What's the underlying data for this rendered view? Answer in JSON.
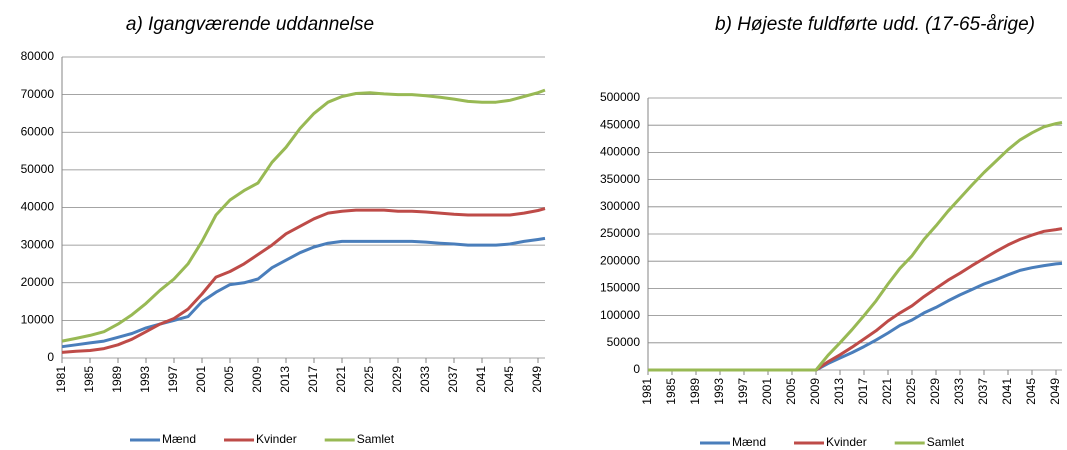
{
  "chart_data": [
    {
      "type": "line",
      "title": "a) Igangværende  uddannelse",
      "x": [
        1981,
        1983,
        1985,
        1987,
        1989,
        1991,
        1993,
        1995,
        1997,
        1999,
        2001,
        2003,
        2005,
        2007,
        2009,
        2011,
        2013,
        2015,
        2017,
        2019,
        2021,
        2023,
        2025,
        2027,
        2029,
        2031,
        2033,
        2035,
        2037,
        2039,
        2041,
        2043,
        2045,
        2047,
        2049,
        2050
      ],
      "xlim": [
        1981,
        2050
      ],
      "xticks": [
        1981,
        1985,
        1989,
        1993,
        1997,
        2001,
        2005,
        2009,
        2013,
        2017,
        2021,
        2025,
        2029,
        2033,
        2037,
        2041,
        2045,
        2049
      ],
      "ylim": [
        0,
        80000
      ],
      "yticks": [
        0,
        10000,
        20000,
        30000,
        40000,
        50000,
        60000,
        70000,
        80000
      ],
      "grid": true,
      "legend": "bottom",
      "series": [
        {
          "name": "Mænd",
          "color": "#4a7ebb",
          "values": [
            3000,
            3500,
            4000,
            4500,
            5500,
            6500,
            8000,
            9000,
            10000,
            11000,
            15000,
            17500,
            19500,
            20000,
            21000,
            24000,
            26000,
            28000,
            29500,
            30500,
            31000,
            31000,
            31000,
            31000,
            31000,
            31000,
            30800,
            30500,
            30300,
            30000,
            30000,
            30000,
            30300,
            31000,
            31500,
            31800
          ]
        },
        {
          "name": "Kvinder",
          "color": "#be4b48",
          "values": [
            1500,
            1800,
            2000,
            2500,
            3500,
            5000,
            7000,
            9000,
            10500,
            13000,
            17000,
            21500,
            23000,
            25000,
            27500,
            30000,
            33000,
            35000,
            37000,
            38500,
            39000,
            39300,
            39300,
            39300,
            39000,
            39000,
            38800,
            38500,
            38200,
            38000,
            38000,
            38000,
            38000,
            38500,
            39200,
            39700
          ]
        },
        {
          "name": "Samlet",
          "color": "#98b954",
          "values": [
            4500,
            5200,
            6000,
            7000,
            9000,
            11500,
            14500,
            18000,
            21000,
            25000,
            31000,
            38000,
            42000,
            44500,
            46500,
            52000,
            56000,
            61000,
            65000,
            68000,
            69500,
            70300,
            70500,
            70200,
            70000,
            70000,
            69700,
            69300,
            68800,
            68200,
            68000,
            68000,
            68500,
            69500,
            70500,
            71200
          ]
        }
      ]
    },
    {
      "type": "line",
      "title": "b) Højeste fuldførte udd. (17-65-årige)",
      "x": [
        1981,
        1983,
        1985,
        1987,
        1989,
        1991,
        1993,
        1995,
        1997,
        1999,
        2001,
        2003,
        2005,
        2007,
        2009,
        2011,
        2013,
        2015,
        2017,
        2019,
        2021,
        2023,
        2025,
        2027,
        2029,
        2031,
        2033,
        2035,
        2037,
        2039,
        2041,
        2043,
        2045,
        2047,
        2049,
        2050
      ],
      "xlim": [
        1981,
        2050
      ],
      "xticks": [
        1981,
        1985,
        1989,
        1993,
        1997,
        2001,
        2005,
        2009,
        2013,
        2017,
        2021,
        2025,
        2029,
        2033,
        2037,
        2041,
        2045,
        2049
      ],
      "ylim": [
        0,
        500000
      ],
      "yticks": [
        0,
        50000,
        100000,
        150000,
        200000,
        250000,
        300000,
        350000,
        400000,
        450000,
        500000
      ],
      "grid": true,
      "legend": "bottom",
      "series": [
        {
          "name": "Mænd",
          "color": "#4a7ebb",
          "values": [
            0,
            0,
            0,
            0,
            0,
            0,
            0,
            0,
            0,
            0,
            0,
            0,
            0,
            0,
            0,
            12000,
            22000,
            32000,
            43000,
            55000,
            68000,
            82000,
            92000,
            105000,
            115000,
            127000,
            138000,
            148000,
            158000,
            166000,
            175000,
            183000,
            188000,
            192000,
            195000,
            196000
          ]
        },
        {
          "name": "Kvinder",
          "color": "#be4b48",
          "values": [
            0,
            0,
            0,
            0,
            0,
            0,
            0,
            0,
            0,
            0,
            0,
            0,
            0,
            0,
            0,
            15000,
            28000,
            42000,
            57000,
            72000,
            90000,
            105000,
            118000,
            135000,
            150000,
            165000,
            178000,
            192000,
            205000,
            218000,
            230000,
            240000,
            248000,
            255000,
            258000,
            260000
          ]
        },
        {
          "name": "Samlet",
          "color": "#98b954",
          "values": [
            0,
            0,
            0,
            0,
            0,
            0,
            0,
            0,
            0,
            0,
            0,
            0,
            0,
            0,
            0,
            27000,
            50000,
            74000,
            100000,
            127000,
            158000,
            187000,
            210000,
            240000,
            265000,
            292000,
            316000,
            340000,
            363000,
            384000,
            405000,
            423000,
            436000,
            447000,
            453000,
            455000
          ]
        }
      ]
    }
  ]
}
